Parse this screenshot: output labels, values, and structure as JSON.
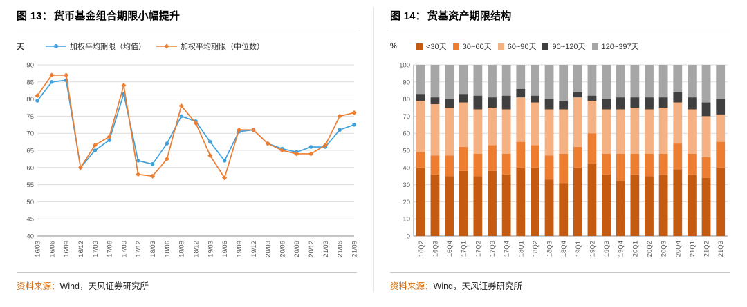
{
  "colors": {
    "accent": "#D96E0F",
    "divider": "#C9C9C9",
    "grid": "#DCDCDC",
    "axis": "#8C8C8C"
  },
  "panels": [
    {
      "prefix": "图 13：",
      "title": "货币基金组合期限小幅提升",
      "unit": "天",
      "source_label": "资料来源：",
      "source_text": "Wind，天风证券研究所"
    },
    {
      "prefix": "图 14：",
      "title": "货基资产期限结构",
      "unit": "%",
      "source_label": "资料来源：",
      "source_text": "Wind，天风证券研究所"
    }
  ],
  "chart_data": [
    {
      "type": "line",
      "title": "货币基金组合期限小幅提升",
      "xlabel": "",
      "ylabel": "天",
      "ylim": [
        40,
        90
      ],
      "ytick_step": 5,
      "grid": true,
      "legend_position": "top",
      "categories": [
        "16/03",
        "16/06",
        "16/09",
        "16/12",
        "17/03",
        "17/06",
        "17/09",
        "17/12",
        "18/03",
        "18/06",
        "18/09",
        "18/12",
        "19/03",
        "19/06",
        "19/09",
        "19/12",
        "20/03",
        "20/06",
        "20/09",
        "20/12",
        "21/03",
        "21/06",
        "21/09"
      ],
      "series": [
        {
          "name": "加权平均期限（均值）",
          "color": "#41A0DC",
          "marker": "circle",
          "values": [
            79.5,
            85,
            85.5,
            60,
            65,
            68,
            81.5,
            62,
            61,
            67,
            75,
            73.5,
            67.5,
            62,
            70.5,
            71,
            67,
            65.5,
            64.5,
            66,
            66,
            71,
            72.5
          ]
        },
        {
          "name": "加权平均期限（中位数）",
          "color": "#ED7D31",
          "marker": "diamond",
          "values": [
            81,
            87,
            87,
            60,
            66.5,
            69,
            84,
            58,
            57.5,
            62.5,
            78,
            73,
            63.5,
            57,
            71,
            71,
            67,
            65,
            64,
            64,
            66.5,
            75,
            76
          ]
        }
      ]
    },
    {
      "type": "bar",
      "stacked": true,
      "percent": true,
      "title": "货基资产期限结构",
      "xlabel": "",
      "ylabel": "%",
      "ylim": [
        0,
        100
      ],
      "ytick_step": 10,
      "grid": true,
      "legend_position": "top",
      "categories": [
        "16Q2",
        "16Q3",
        "16Q4",
        "17Q1",
        "17Q2",
        "17Q3",
        "17Q4",
        "18Q1",
        "18Q2",
        "18Q3",
        "18Q4",
        "19Q1",
        "19Q2",
        "19Q3",
        "19Q4",
        "20Q1",
        "20Q2",
        "20Q3",
        "20Q4",
        "21Q1",
        "21Q2",
        "21Q3"
      ],
      "series": [
        {
          "name": "<30天",
          "color": "#C55A11",
          "values": [
            40,
            36,
            35,
            38,
            35,
            38,
            36,
            40,
            40,
            33,
            31,
            40,
            42,
            36,
            32,
            36,
            35,
            36,
            39,
            36,
            34,
            40
          ]
        },
        {
          "name": "30~60天",
          "color": "#ED7D31",
          "values": [
            9,
            11,
            12,
            14,
            13,
            15,
            12,
            15,
            13,
            14,
            17,
            12,
            18,
            12,
            16,
            12,
            13,
            12,
            15,
            12,
            12,
            15
          ]
        },
        {
          "name": "60~90天",
          "color": "#F4B183",
          "values": [
            30,
            30,
            28,
            26,
            26,
            22,
            26,
            26,
            25,
            27,
            26,
            29,
            19,
            26,
            26,
            27,
            26,
            27,
            24,
            26,
            24,
            16
          ]
        },
        {
          "name": "90~120天",
          "color": "#404040",
          "values": [
            4,
            4,
            5,
            5,
            8,
            6,
            8,
            5,
            4,
            6,
            5,
            3,
            3,
            6,
            7,
            6,
            7,
            6,
            6,
            7,
            8,
            9
          ]
        },
        {
          "name": "120~397天",
          "color": "#A6A6A6",
          "values": [
            17,
            19,
            20,
            17,
            18,
            19,
            18,
            14,
            18,
            20,
            21,
            16,
            18,
            20,
            19,
            19,
            19,
            19,
            16,
            19,
            22,
            20
          ]
        }
      ]
    }
  ]
}
